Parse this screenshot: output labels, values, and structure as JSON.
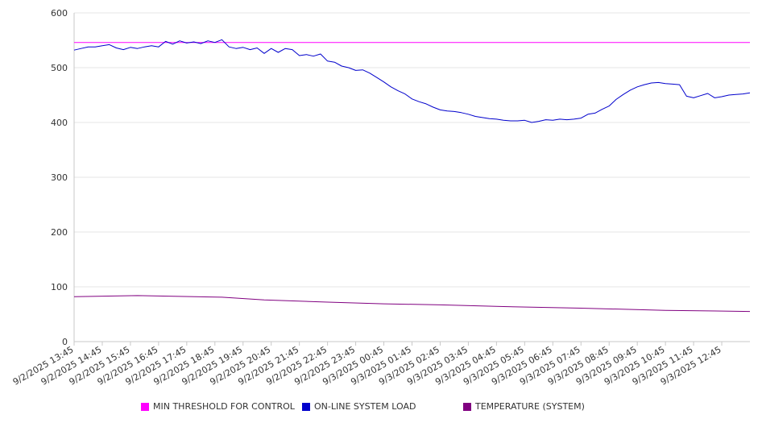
{
  "chart_data": {
    "type": "line",
    "title": "",
    "xlabel": "",
    "ylabel": "",
    "ylim": [
      0,
      600
    ],
    "yticks": [
      "0",
      "100",
      "200",
      "300",
      "400",
      "500",
      "600"
    ],
    "grid": true,
    "legend_position": "bottom",
    "x_ticks": [
      "9/2/2025 13:45",
      "9/2/2025 14:45",
      "9/2/2025 15:45",
      "9/2/2025 16:45",
      "9/2/2025 17:45",
      "9/2/2025 18:45",
      "9/2/2025 19:45",
      "9/2/2025 20:45",
      "9/2/2025 21:45",
      "9/2/2025 22:45",
      "9/2/2025 23:45",
      "9/3/2025 00:45",
      "9/3/2025 01:45",
      "9/3/2025 02:45",
      "9/3/2025 03:45",
      "9/3/2025 04:45",
      "9/3/2025 05:45",
      "9/3/2025 06:45",
      "9/3/2025 07:45",
      "9/3/2025 08:45",
      "9/3/2025 09:45",
      "9/3/2025 10:45",
      "9/3/2025 11:45",
      "9/3/2025 12:45"
    ],
    "x_range": [
      "9/2/2025 13:45",
      "9/3/2025 13:45"
    ],
    "series": [
      {
        "name": "MIN THRESHOLD FOR CONTROL",
        "color": "#ff00ff",
        "points": [
          [
            "9/2/2025 13:45",
            546
          ],
          [
            "9/3/2025 13:45",
            546
          ]
        ]
      },
      {
        "name": "ON-LINE SYSTEM LOAD",
        "color": "#0000cc",
        "points": [
          [
            "9/2/2025 13:45",
            532
          ],
          [
            "9/2/2025 14:00",
            535
          ],
          [
            "9/2/2025 14:15",
            538
          ],
          [
            "9/2/2025 14:30",
            538
          ],
          [
            "9/2/2025 14:45",
            540
          ],
          [
            "9/2/2025 15:00",
            542
          ],
          [
            "9/2/2025 15:15",
            536
          ],
          [
            "9/2/2025 15:30",
            533
          ],
          [
            "9/2/2025 15:45",
            537
          ],
          [
            "9/2/2025 16:00",
            535
          ],
          [
            "9/2/2025 16:15",
            538
          ],
          [
            "9/2/2025 16:30",
            540
          ],
          [
            "9/2/2025 16:45",
            538
          ],
          [
            "9/2/2025 17:00",
            548
          ],
          [
            "9/2/2025 17:15",
            543
          ],
          [
            "9/2/2025 17:30",
            549
          ],
          [
            "9/2/2025 17:45",
            545
          ],
          [
            "9/2/2025 18:00",
            547
          ],
          [
            "9/2/2025 18:15",
            544
          ],
          [
            "9/2/2025 18:30",
            549
          ],
          [
            "9/2/2025 18:45",
            546
          ],
          [
            "9/2/2025 19:00",
            551
          ],
          [
            "9/2/2025 19:15",
            538
          ],
          [
            "9/2/2025 19:30",
            535
          ],
          [
            "9/2/2025 19:45",
            537
          ],
          [
            "9/2/2025 20:00",
            533
          ],
          [
            "9/2/2025 20:15",
            536
          ],
          [
            "9/2/2025 20:30",
            526
          ],
          [
            "9/2/2025 20:45",
            535
          ],
          [
            "9/2/2025 21:00",
            528
          ],
          [
            "9/2/2025 21:15",
            535
          ],
          [
            "9/2/2025 21:30",
            533
          ],
          [
            "9/2/2025 21:45",
            522
          ],
          [
            "9/2/2025 22:00",
            524
          ],
          [
            "9/2/2025 22:15",
            521
          ],
          [
            "9/2/2025 22:30",
            525
          ],
          [
            "9/2/2025 22:45",
            512
          ],
          [
            "9/2/2025 23:00",
            510
          ],
          [
            "9/2/2025 23:15",
            503
          ],
          [
            "9/2/2025 23:30",
            500
          ],
          [
            "9/2/2025 23:45",
            495
          ],
          [
            "9/3/2025 00:00",
            496
          ],
          [
            "9/3/2025 00:15",
            490
          ],
          [
            "9/3/2025 00:30",
            482
          ],
          [
            "9/3/2025 00:45",
            474
          ],
          [
            "9/3/2025 01:00",
            465
          ],
          [
            "9/3/2025 01:15",
            458
          ],
          [
            "9/3/2025 01:30",
            452
          ],
          [
            "9/3/2025 01:45",
            443
          ],
          [
            "9/3/2025 02:00",
            438
          ],
          [
            "9/3/2025 02:15",
            434
          ],
          [
            "9/3/2025 02:30",
            428
          ],
          [
            "9/3/2025 02:45",
            423
          ],
          [
            "9/3/2025 03:00",
            421
          ],
          [
            "9/3/2025 03:15",
            420
          ],
          [
            "9/3/2025 03:30",
            418
          ],
          [
            "9/3/2025 03:45",
            415
          ],
          [
            "9/3/2025 04:00",
            411
          ],
          [
            "9/3/2025 04:15",
            409
          ],
          [
            "9/3/2025 04:30",
            407
          ],
          [
            "9/3/2025 04:45",
            406
          ],
          [
            "9/3/2025 05:00",
            404
          ],
          [
            "9/3/2025 05:15",
            403
          ],
          [
            "9/3/2025 05:30",
            403
          ],
          [
            "9/3/2025 05:45",
            404
          ],
          [
            "9/3/2025 06:00",
            400
          ],
          [
            "9/3/2025 06:15",
            402
          ],
          [
            "9/3/2025 06:30",
            405
          ],
          [
            "9/3/2025 06:45",
            404
          ],
          [
            "9/3/2025 07:00",
            406
          ],
          [
            "9/3/2025 07:15",
            405
          ],
          [
            "9/3/2025 07:30",
            406
          ],
          [
            "9/3/2025 07:45",
            408
          ],
          [
            "9/3/2025 08:00",
            415
          ],
          [
            "9/3/2025 08:15",
            417
          ],
          [
            "9/3/2025 08:30",
            424
          ],
          [
            "9/3/2025 08:45",
            430
          ],
          [
            "9/3/2025 09:00",
            442
          ],
          [
            "9/3/2025 09:15",
            451
          ],
          [
            "9/3/2025 09:30",
            459
          ],
          [
            "9/3/2025 09:45",
            465
          ],
          [
            "9/3/2025 10:00",
            469
          ],
          [
            "9/3/2025 10:15",
            472
          ],
          [
            "9/3/2025 10:30",
            473
          ],
          [
            "9/3/2025 10:45",
            471
          ],
          [
            "9/3/2025 11:00",
            470
          ],
          [
            "9/3/2025 11:15",
            469
          ],
          [
            "9/3/2025 11:30",
            448
          ],
          [
            "9/3/2025 11:45",
            445
          ],
          [
            "9/3/2025 12:00",
            449
          ],
          [
            "9/3/2025 12:15",
            453
          ],
          [
            "9/3/2025 12:30",
            445
          ],
          [
            "9/3/2025 12:45",
            447
          ],
          [
            "9/3/2025 13:00",
            450
          ],
          [
            "9/3/2025 13:15",
            451
          ],
          [
            "9/3/2025 13:30",
            452
          ],
          [
            "9/3/2025 13:45",
            454
          ]
        ]
      },
      {
        "name": "TEMPERATURE (SYSTEM)",
        "color": "#800080",
        "points": [
          [
            "9/2/2025 13:45",
            82
          ],
          [
            "9/2/2025 16:00",
            84
          ],
          [
            "9/2/2025 19:00",
            81
          ],
          [
            "9/2/2025 20:30",
            76
          ],
          [
            "9/2/2025 22:45",
            72
          ],
          [
            "9/3/2025 00:45",
            69
          ],
          [
            "9/3/2025 02:45",
            67
          ],
          [
            "9/3/2025 05:00",
            64
          ],
          [
            "9/3/2025 07:45",
            61
          ],
          [
            "9/3/2025 10:45",
            57
          ],
          [
            "9/3/2025 13:45",
            55
          ]
        ]
      }
    ]
  }
}
